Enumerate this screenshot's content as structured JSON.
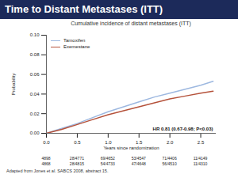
{
  "chart_data": {
    "type": "line",
    "title": "Time to Distant Metastases (ITT)",
    "subtitle": "Cumulative incidence of distant metastases (ITT)",
    "x_label": "Years since randomization",
    "y_label": "Probability",
    "x": [
      0,
      0.25,
      0.5,
      0.75,
      1.0,
      1.25,
      1.5,
      1.75,
      2.0,
      2.25,
      2.5,
      2.7
    ],
    "series": [
      {
        "name": "Tamoxifen",
        "color": "#9db8e0",
        "values": [
          0,
          0.005,
          0.01,
          0.016,
          0.022,
          0.027,
          0.032,
          0.037,
          0.041,
          0.045,
          0.049,
          0.053
        ]
      },
      {
        "name": "Exemestane",
        "color": "#b5523b",
        "values": [
          0,
          0.004,
          0.009,
          0.014,
          0.019,
          0.023,
          0.027,
          0.031,
          0.035,
          0.038,
          0.041,
          0.043
        ]
      }
    ],
    "xlim": [
      0,
      2.75
    ],
    "ylim": [
      0,
      0.1
    ],
    "xticks": [
      {
        "value": 0,
        "label": "0.0"
      },
      0.5,
      {
        "value": 1,
        "label": "1.0"
      },
      1.5,
      {
        "value": 2,
        "label": "2.0"
      },
      2.5
    ],
    "yticks": [
      {
        "value": 0,
        "label": "0.00"
      },
      0.02,
      0.04,
      0.06,
      0.08,
      {
        "value": 0.1,
        "label": "0.10"
      }
    ],
    "grid": false,
    "legend": "top-left",
    "annotations": [
      "HR 0.81 (0.67-0.98; P<0.03)"
    ],
    "at_risk": {
      "x": [
        0,
        0.5,
        1,
        1.5,
        2,
        2.5
      ],
      "rows": [
        [
          "4898",
          "28/4771",
          "69/4652",
          "53/4547",
          "71/4406",
          "11/4149"
        ],
        [
          "4868",
          "28/4815",
          "54/4733",
          "47/4648",
          "56/4510",
          "11/4310"
        ]
      ]
    },
    "caption": "Adapted from Jones et al. SABCS 2008, abstract 15."
  }
}
